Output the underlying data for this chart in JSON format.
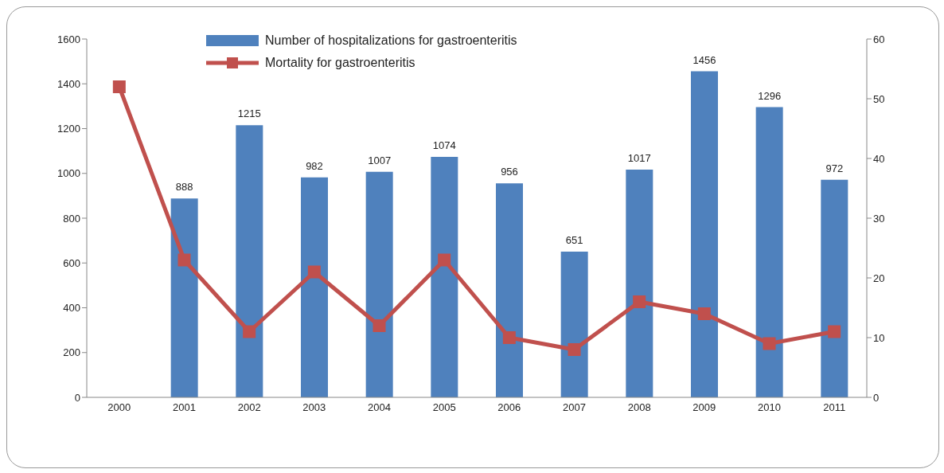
{
  "chart_data": {
    "type": "bar",
    "categories": [
      "2000",
      "2001",
      "2002",
      "2003",
      "2004",
      "2005",
      "2006",
      "2007",
      "2008",
      "2009",
      "2010",
      "2011"
    ],
    "series": [
      {
        "name": "Number of hospitalizations for gastroenteritis",
        "color": "#4f81bd",
        "values": [
          null,
          888,
          1215,
          982,
          1007,
          1074,
          956,
          651,
          1017,
          1456,
          1296,
          972
        ],
        "value_labels": [
          null,
          "888",
          "1215",
          "982",
          "1007",
          "1074",
          "956",
          "651",
          "1017",
          "1456",
          "1296",
          "972"
        ]
      },
      {
        "name": "Mortality for gastroenteritis",
        "type": "line",
        "axis": "y2",
        "color": "#c0504d",
        "values": [
          52,
          23,
          11,
          21,
          12,
          23,
          10,
          8,
          16,
          14,
          9,
          11
        ]
      }
    ],
    "ylim": [
      0,
      1600
    ],
    "yticks": [
      0,
      200,
      400,
      600,
      800,
      1000,
      1200,
      1400,
      1600
    ],
    "y2lim": [
      0,
      60
    ],
    "y2ticks": [
      0,
      10,
      20,
      30,
      40,
      50,
      60
    ],
    "grid": false,
    "legend": "top",
    "marker": "square",
    "line_style": "solid"
  }
}
